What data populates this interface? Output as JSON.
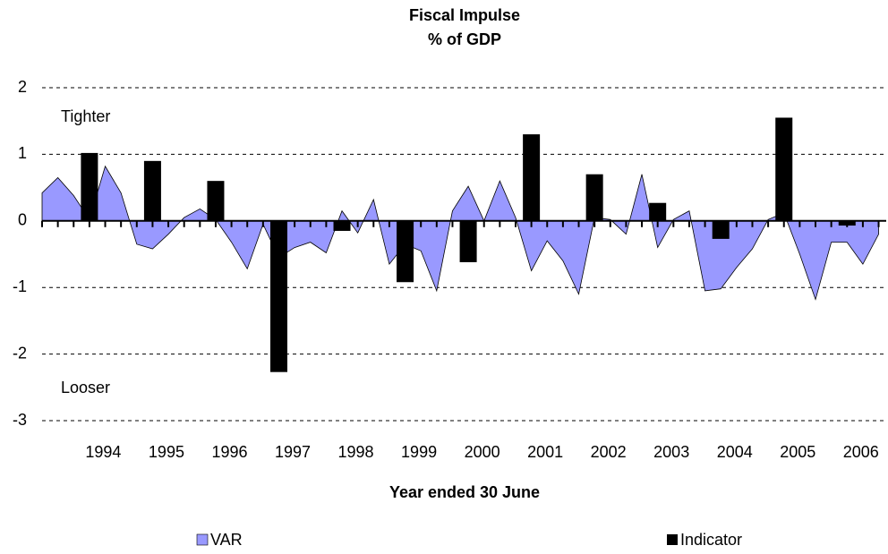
{
  "chart_data": {
    "type": "combo",
    "title": "Fiscal Impulse",
    "subtitle": "% of GDP",
    "xlabel": "Year ended 30 June",
    "annotations": [
      "Tighter",
      "Looser"
    ],
    "xlim": [
      1993.03,
      2006.4
    ],
    "xticks": [
      1994,
      1995,
      1996,
      1997,
      1998,
      1999,
      2000,
      2001,
      2002,
      2003,
      2004,
      2005,
      2006
    ],
    "ylim": [
      -3,
      2
    ],
    "yticks": [
      2,
      1,
      0,
      -1,
      -2,
      -3
    ],
    "grid": true,
    "series": [
      {
        "name": "VAR",
        "type": "area",
        "color": "#9999ff",
        "x": [
          1993.03,
          1993.28,
          1993.53,
          1993.78,
          1994.03,
          1994.28,
          1994.53,
          1994.78,
          1995.03,
          1995.28,
          1995.53,
          1995.78,
          1996.03,
          1996.28,
          1996.53,
          1996.78,
          1997.03,
          1997.28,
          1997.53,
          1997.78,
          1998.03,
          1998.28,
          1998.53,
          1998.78,
          1999.03,
          1999.28,
          1999.53,
          1999.78,
          2000.03,
          2000.28,
          2000.53,
          2000.78,
          2001.03,
          2001.28,
          2001.53,
          2001.78,
          2002.03,
          2002.28,
          2002.53,
          2002.78,
          2003.03,
          2003.28,
          2003.53,
          2003.78,
          2004.03,
          2004.28,
          2004.53,
          2004.78,
          2005.03,
          2005.28,
          2005.53,
          2005.78,
          2006.03,
          2006.28
        ],
        "values": [
          0.42,
          0.65,
          0.38,
          0.02,
          0.82,
          0.42,
          -0.35,
          -0.42,
          -0.2,
          0.05,
          0.18,
          0.02,
          -0.32,
          -0.72,
          -0.05,
          -0.55,
          -0.4,
          -0.32,
          -0.48,
          0.15,
          -0.18,
          0.32,
          -0.65,
          -0.35,
          -0.45,
          -1.05,
          0.15,
          0.52,
          0.0,
          0.6,
          0.05,
          -0.75,
          -0.3,
          -0.6,
          -1.1,
          0.05,
          0.02,
          -0.2,
          0.7,
          -0.4,
          0.02,
          0.15,
          -1.05,
          -1.02,
          -0.7,
          -0.42,
          0.02,
          0.12,
          -0.5,
          -1.18,
          -0.32,
          -0.32,
          -0.65,
          -0.2
        ]
      },
      {
        "name": "Indicator",
        "type": "bar",
        "color": "#000000",
        "x": [
          1993.78,
          1994.78,
          1995.78,
          1996.78,
          1997.78,
          1998.78,
          1999.78,
          2000.78,
          2001.78,
          2002.78,
          2003.78,
          2004.78,
          2005.78
        ],
        "values": [
          1.02,
          0.9,
          0.6,
          -2.27,
          -0.15,
          -0.92,
          -0.62,
          1.3,
          0.7,
          0.27,
          -0.27,
          1.55,
          -0.07
        ]
      }
    ]
  }
}
